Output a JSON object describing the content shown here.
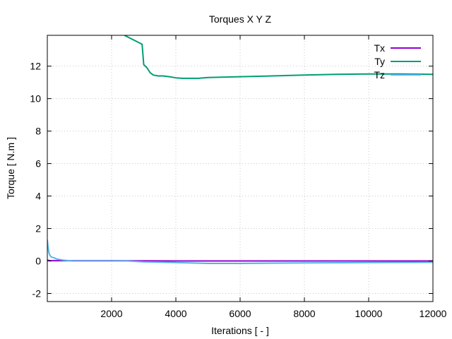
{
  "chart_data": {
    "type": "line",
    "title": "Torques X Y Z",
    "xlabel": "Iterations [ - ]",
    "ylabel": "Torque [ N.m ]",
    "xlim": [
      0,
      12000
    ],
    "ylim": [
      -2.5,
      13.9
    ],
    "xticks": [
      2000,
      4000,
      6000,
      8000,
      10000,
      12000
    ],
    "xtick_labels": [
      "2000",
      "4000",
      "6000",
      "8000",
      "10000",
      "12000"
    ],
    "yticks": [
      -2,
      0,
      2,
      4,
      6,
      8,
      10,
      12
    ],
    "ytick_labels": [
      "-2",
      "0",
      "2",
      "4",
      "6",
      "8",
      "10",
      "12"
    ],
    "grid": true,
    "legend_position": "top-right",
    "series": [
      {
        "name": "Tx",
        "color": "#9400d3",
        "x": [
          0,
          100,
          500,
          1000,
          2000,
          4000,
          6000,
          8000,
          10000,
          12000
        ],
        "y": [
          0.05,
          0.02,
          0.02,
          0.02,
          0.02,
          0.0,
          0.0,
          0.0,
          0.0,
          0.0
        ]
      },
      {
        "name": "Ty",
        "color": "#009e73",
        "x": [
          2400,
          2950,
          3000,
          3100,
          3200,
          3300,
          3450,
          3600,
          3800,
          4000,
          4200,
          4700,
          5000,
          6000,
          7000,
          8000,
          9000,
          10000,
          11000,
          12000
        ],
        "y": [
          13.9,
          13.35,
          12.1,
          11.9,
          11.6,
          11.45,
          11.4,
          11.4,
          11.35,
          11.28,
          11.25,
          11.25,
          11.3,
          11.35,
          11.4,
          11.45,
          11.5,
          11.52,
          11.52,
          11.5
        ]
      },
      {
        "name": "Tz",
        "color": "#56b4e9",
        "x": [
          0,
          20,
          50,
          80,
          120,
          200,
          300,
          500,
          800,
          1500,
          2500,
          3000,
          4000,
          5000,
          6000,
          8000,
          10000,
          12000
        ],
        "y": [
          1.3,
          0.9,
          0.5,
          0.35,
          0.25,
          0.2,
          0.12,
          0.05,
          0.0,
          0.0,
          0.0,
          -0.05,
          -0.1,
          -0.15,
          -0.15,
          -0.12,
          -0.1,
          -0.08
        ]
      }
    ]
  }
}
